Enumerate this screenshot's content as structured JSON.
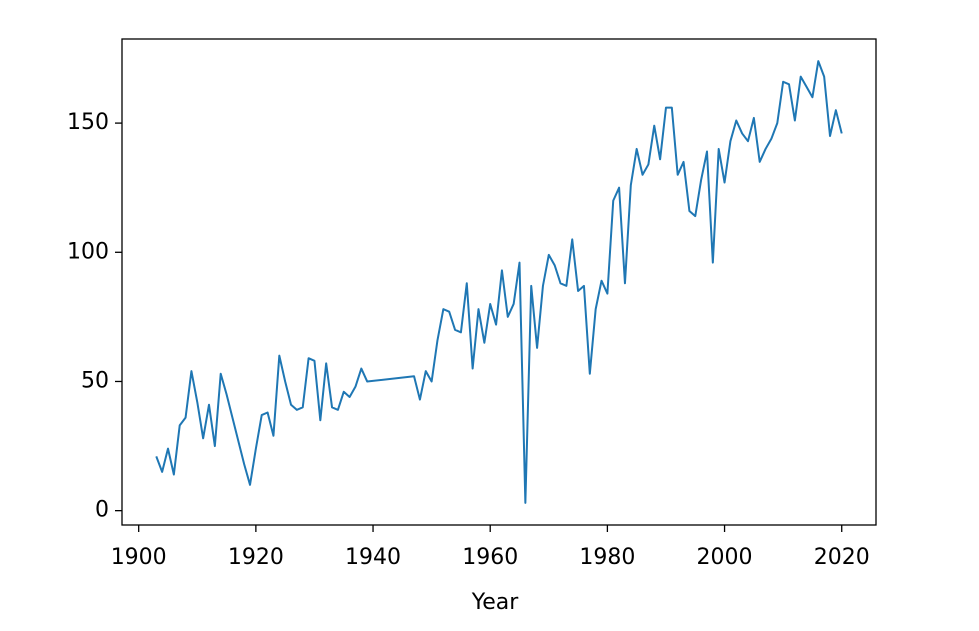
{
  "chart_data": {
    "type": "line",
    "xlabel": "Year",
    "x": [
      1903,
      1904,
      1905,
      1906,
      1907,
      1908,
      1909,
      1910,
      1911,
      1912,
      1913,
      1914,
      1915,
      1916,
      1917,
      1918,
      1919,
      1920,
      1921,
      1922,
      1923,
      1924,
      1925,
      1926,
      1927,
      1928,
      1929,
      1930,
      1931,
      1932,
      1933,
      1934,
      1935,
      1936,
      1937,
      1938,
      1939,
      1947,
      1948,
      1949,
      1950,
      1951,
      1952,
      1953,
      1954,
      1955,
      1956,
      1957,
      1958,
      1959,
      1960,
      1961,
      1962,
      1963,
      1964,
      1965,
      1966,
      1967,
      1968,
      1969,
      1970,
      1971,
      1972,
      1973,
      1974,
      1975,
      1976,
      1977,
      1978,
      1979,
      1980,
      1981,
      1982,
      1983,
      1984,
      1985,
      1986,
      1987,
      1988,
      1989,
      1990,
      1991,
      1992,
      1993,
      1994,
      1995,
      1996,
      1997,
      1998,
      1999,
      2000,
      2001,
      2002,
      2003,
      2004,
      2005,
      2006,
      2007,
      2008,
      2009,
      2010,
      2011,
      2012,
      2013,
      2014,
      2015,
      2016,
      2017,
      2018,
      2019,
      2020
    ],
    "series": [
      {
        "color": "#1f77b4",
        "values": [
          21,
          15,
          24,
          14,
          33,
          36,
          54,
          42,
          28,
          41,
          25,
          53,
          45,
          36,
          27,
          18,
          10,
          24,
          37,
          38,
          29,
          60,
          50,
          41,
          39,
          40,
          59,
          58,
          35,
          57,
          40,
          39,
          46,
          44,
          48,
          55,
          50,
          52,
          43,
          54,
          50,
          66,
          78,
          77,
          70,
          69,
          88,
          55,
          78,
          65,
          80,
          72,
          93,
          75,
          80,
          96,
          3,
          87,
          63,
          87,
          99,
          95,
          88,
          87,
          105,
          85,
          87,
          53,
          78,
          89,
          84,
          120,
          125,
          88,
          126,
          140,
          130,
          134,
          149,
          136,
          156,
          156,
          130,
          135,
          116,
          114,
          128,
          139,
          96,
          140,
          127,
          143,
          151,
          146,
          143,
          152,
          135,
          140,
          144,
          150,
          166,
          165,
          151,
          168,
          164,
          160,
          174,
          168,
          145,
          155,
          146
        ]
      }
    ],
    "xlim": [
      1897.15,
      2025.85
    ],
    "xticks": [
      1900,
      1920,
      1940,
      1960,
      1980,
      2000,
      2020
    ],
    "ylim": [
      -5.55,
      182.55
    ],
    "yticks": [
      0,
      50,
      100,
      150
    ]
  }
}
